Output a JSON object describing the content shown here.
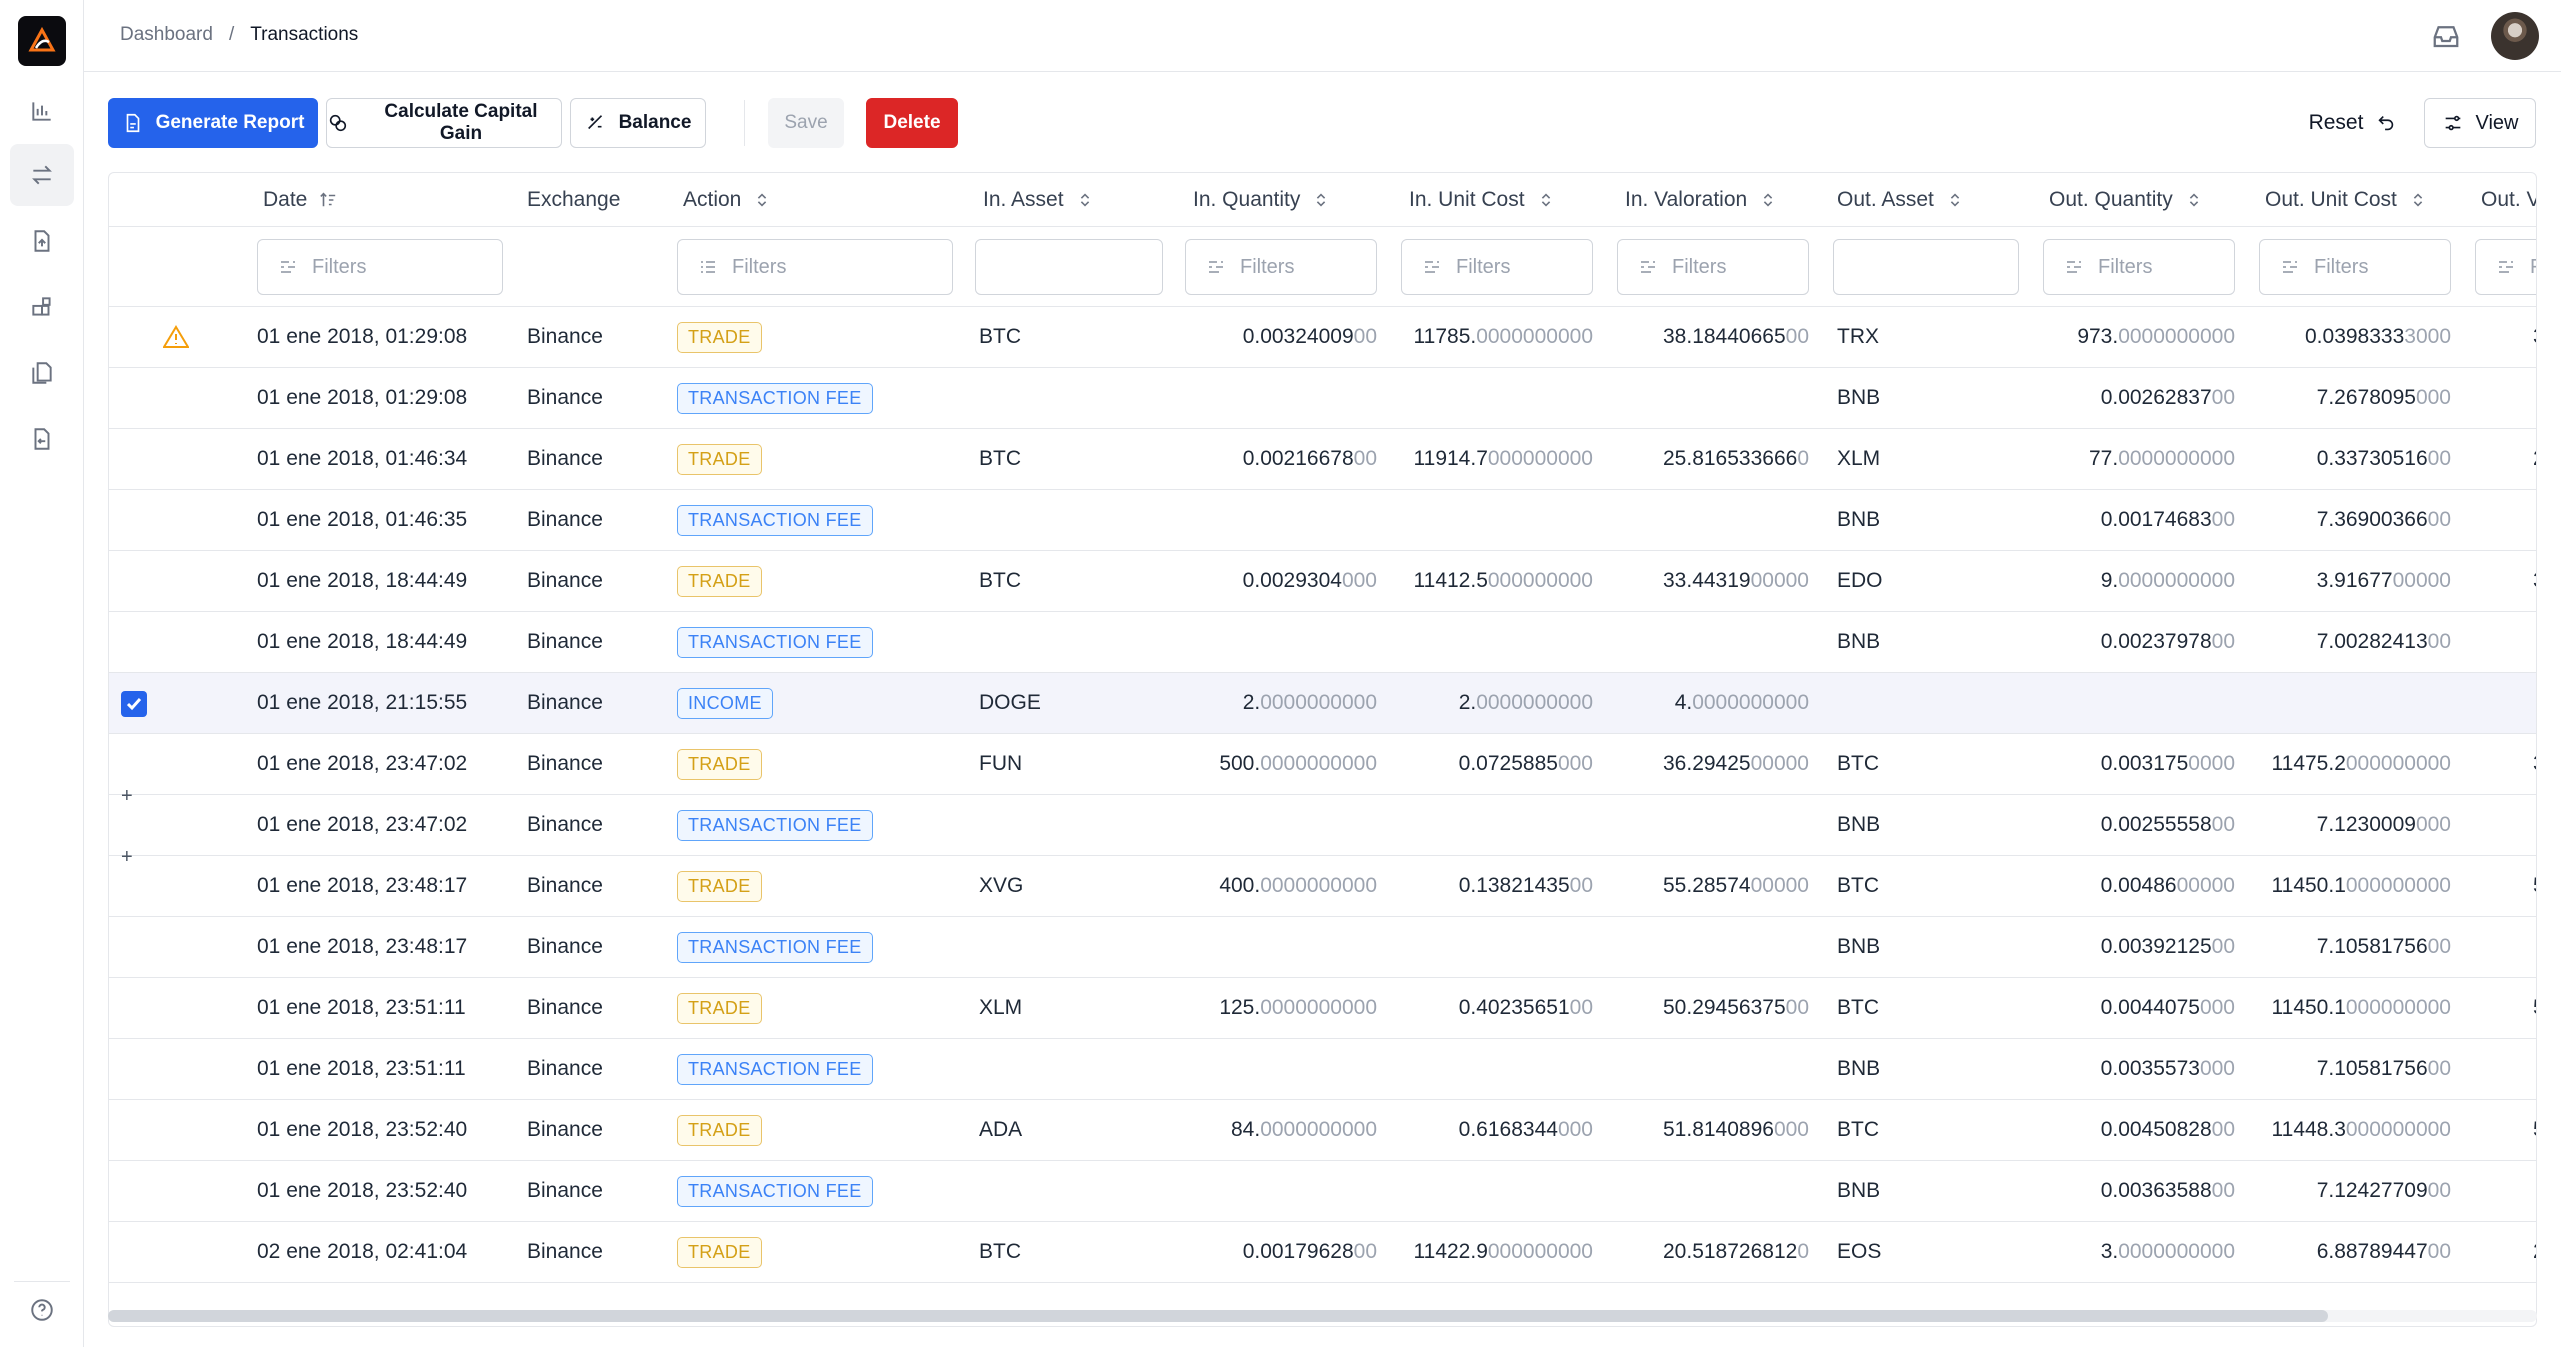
{
  "breadcrumb": {
    "root": "Dashboard",
    "separator": "/",
    "current": "Transactions"
  },
  "toolbar": {
    "generate_report": "Generate Report",
    "calculate_capital_gain": "Calculate Capital Gain",
    "balance": "Balance",
    "save": "Save",
    "delete": "Delete",
    "reset": "Reset",
    "view": "View"
  },
  "columns": {
    "date": "Date",
    "exchange": "Exchange",
    "action": "Action",
    "in_asset": "In. Asset",
    "in_quantity": "In. Quantity",
    "in_unit_cost": "In. Unit Cost",
    "in_valoration": "In. Valoration",
    "out_asset": "Out. Asset",
    "out_quantity": "Out. Quantity",
    "out_unit_cost": "Out. Unit Cost",
    "out_valoration": "Out. V"
  },
  "filters": {
    "placeholder": "Filters",
    "partial": "F"
  },
  "colors": {
    "primary": "#2563eb",
    "danger": "#dc2626",
    "trade": "#d4a017",
    "fee": "#3b82f6"
  },
  "rows": [
    {
      "warn": true,
      "date": "01 ene 2018, 01:29:08",
      "exchange": "Binance",
      "action": "TRADE",
      "in_asset": "BTC",
      "in_qty": [
        "0.00324009",
        "00"
      ],
      "in_cost": [
        "11785.",
        "0000000000"
      ],
      "in_val": [
        "38.18440665",
        "00"
      ],
      "out_asset": "TRX",
      "out_qty": [
        "973.",
        "0000000000"
      ],
      "out_cost": [
        "0.0398333",
        "3000"
      ],
      "out_val": "3"
    },
    {
      "date": "01 ene 2018, 01:29:08",
      "exchange": "Binance",
      "action": "TRANSACTION FEE",
      "in_asset": "",
      "in_qty": [
        "",
        ""
      ],
      "in_cost": [
        "",
        ""
      ],
      "in_val": [
        "",
        ""
      ],
      "out_asset": "BNB",
      "out_qty": [
        "0.00262837",
        "00"
      ],
      "out_cost": [
        "7.2678095",
        "000"
      ],
      "out_val": ""
    },
    {
      "date": "01 ene 2018, 01:46:34",
      "exchange": "Binance",
      "action": "TRADE",
      "in_asset": "BTC",
      "in_qty": [
        "0.00216678",
        "00"
      ],
      "in_cost": [
        "11914.7",
        "000000000"
      ],
      "in_val": [
        "25.816533666",
        "0"
      ],
      "out_asset": "XLM",
      "out_qty": [
        "77.",
        "0000000000"
      ],
      "out_cost": [
        "0.33730516",
        "00"
      ],
      "out_val": "2"
    },
    {
      "date": "01 ene 2018, 01:46:35",
      "exchange": "Binance",
      "action": "TRANSACTION FEE",
      "in_asset": "",
      "in_qty": [
        "",
        ""
      ],
      "in_cost": [
        "",
        ""
      ],
      "in_val": [
        "",
        ""
      ],
      "out_asset": "BNB",
      "out_qty": [
        "0.00174683",
        "00"
      ],
      "out_cost": [
        "7.36900366",
        "00"
      ],
      "out_val": ""
    },
    {
      "date": "01 ene 2018, 18:44:49",
      "exchange": "Binance",
      "action": "TRADE",
      "in_asset": "BTC",
      "in_qty": [
        "0.0029304",
        "000"
      ],
      "in_cost": [
        "11412.5",
        "000000000"
      ],
      "in_val": [
        "33.44319",
        "00000"
      ],
      "out_asset": "EDO",
      "out_qty": [
        "9.",
        "0000000000"
      ],
      "out_cost": [
        "3.91677",
        "00000"
      ],
      "out_val": "3"
    },
    {
      "date": "01 ene 2018, 18:44:49",
      "exchange": "Binance",
      "action": "TRANSACTION FEE",
      "in_asset": "",
      "in_qty": [
        "",
        ""
      ],
      "in_cost": [
        "",
        ""
      ],
      "in_val": [
        "",
        ""
      ],
      "out_asset": "BNB",
      "out_qty": [
        "0.00237978",
        "00"
      ],
      "out_cost": [
        "7.00282413",
        "00"
      ],
      "out_val": ""
    },
    {
      "selected": true,
      "date": "01 ene 2018, 21:15:55",
      "exchange": "Binance",
      "action": "INCOME",
      "in_asset": "DOGE",
      "in_qty": [
        "2.",
        "0000000000"
      ],
      "in_cost": [
        "2.",
        "0000000000"
      ],
      "in_val": [
        "4.",
        "0000000000"
      ],
      "out_asset": "",
      "out_qty": [
        "",
        ""
      ],
      "out_cost": [
        "",
        ""
      ],
      "out_val": ""
    },
    {
      "date": "01 ene 2018, 23:47:02",
      "exchange": "Binance",
      "action": "TRADE",
      "in_asset": "FUN",
      "in_qty": [
        "500.",
        "0000000000"
      ],
      "in_cost": [
        "0.0725885",
        "000"
      ],
      "in_val": [
        "36.29425",
        "00000"
      ],
      "out_asset": "BTC",
      "out_qty": [
        "0.003175",
        "0000"
      ],
      "out_cost": [
        "11475.2",
        "000000000"
      ],
      "out_val": "3"
    },
    {
      "plus": true,
      "date": "01 ene 2018, 23:47:02",
      "exchange": "Binance",
      "action": "TRANSACTION FEE",
      "in_asset": "",
      "in_qty": [
        "",
        ""
      ],
      "in_cost": [
        "",
        ""
      ],
      "in_val": [
        "",
        ""
      ],
      "out_asset": "BNB",
      "out_qty": [
        "0.00255558",
        "00"
      ],
      "out_cost": [
        "7.1230009",
        "000"
      ],
      "out_val": ""
    },
    {
      "plus": true,
      "date": "01 ene 2018, 23:48:17",
      "exchange": "Binance",
      "action": "TRADE",
      "in_asset": "XVG",
      "in_qty": [
        "400.",
        "0000000000"
      ],
      "in_cost": [
        "0.13821435",
        "00"
      ],
      "in_val": [
        "55.28574",
        "00000"
      ],
      "out_asset": "BTC",
      "out_qty": [
        "0.00486",
        "00000"
      ],
      "out_cost": [
        "11450.1",
        "000000000"
      ],
      "out_val": "5"
    },
    {
      "date": "01 ene 2018, 23:48:17",
      "exchange": "Binance",
      "action": "TRANSACTION FEE",
      "in_asset": "",
      "in_qty": [
        "",
        ""
      ],
      "in_cost": [
        "",
        ""
      ],
      "in_val": [
        "",
        ""
      ],
      "out_asset": "BNB",
      "out_qty": [
        "0.00392125",
        "00"
      ],
      "out_cost": [
        "7.10581756",
        "00"
      ],
      "out_val": ""
    },
    {
      "date": "01 ene 2018, 23:51:11",
      "exchange": "Binance",
      "action": "TRADE",
      "in_asset": "XLM",
      "in_qty": [
        "125.",
        "0000000000"
      ],
      "in_cost": [
        "0.40235651",
        "00"
      ],
      "in_val": [
        "50.29456375",
        "00"
      ],
      "out_asset": "BTC",
      "out_qty": [
        "0.0044075",
        "000"
      ],
      "out_cost": [
        "11450.1",
        "000000000"
      ],
      "out_val": "5"
    },
    {
      "date": "01 ene 2018, 23:51:11",
      "exchange": "Binance",
      "action": "TRANSACTION FEE",
      "in_asset": "",
      "in_qty": [
        "",
        ""
      ],
      "in_cost": [
        "",
        ""
      ],
      "in_val": [
        "",
        ""
      ],
      "out_asset": "BNB",
      "out_qty": [
        "0.0035573",
        "000"
      ],
      "out_cost": [
        "7.10581756",
        "00"
      ],
      "out_val": ""
    },
    {
      "date": "01 ene 2018, 23:52:40",
      "exchange": "Binance",
      "action": "TRADE",
      "in_asset": "ADA",
      "in_qty": [
        "84.",
        "0000000000"
      ],
      "in_cost": [
        "0.6168344",
        "000"
      ],
      "in_val": [
        "51.8140896",
        "000"
      ],
      "out_asset": "BTC",
      "out_qty": [
        "0.00450828",
        "00"
      ],
      "out_cost": [
        "11448.3",
        "000000000"
      ],
      "out_val": "5"
    },
    {
      "date": "01 ene 2018, 23:52:40",
      "exchange": "Binance",
      "action": "TRANSACTION FEE",
      "in_asset": "",
      "in_qty": [
        "",
        ""
      ],
      "in_cost": [
        "",
        ""
      ],
      "in_val": [
        "",
        ""
      ],
      "out_asset": "BNB",
      "out_qty": [
        "0.00363588",
        "00"
      ],
      "out_cost": [
        "7.12427709",
        "00"
      ],
      "out_val": ""
    },
    {
      "date": "02 ene 2018, 02:41:04",
      "exchange": "Binance",
      "action": "TRADE",
      "in_asset": "BTC",
      "in_qty": [
        "0.00179628",
        "00"
      ],
      "in_cost": [
        "11422.9",
        "000000000"
      ],
      "in_val": [
        "20.518726812",
        "0"
      ],
      "out_asset": "EOS",
      "out_qty": [
        "3.",
        "0000000000"
      ],
      "out_cost": [
        "6.88789447",
        "00"
      ],
      "out_val": "2"
    }
  ]
}
